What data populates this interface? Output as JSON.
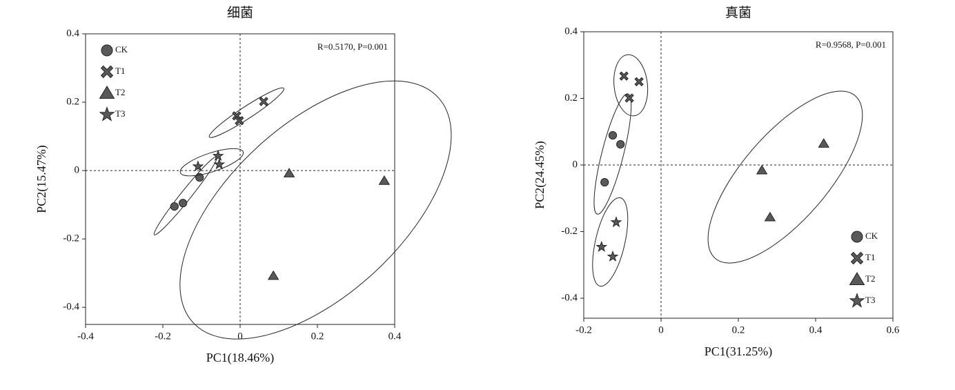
{
  "chart_data": [
    {
      "type": "scatter",
      "title": "细菌",
      "x_label": "PC1(18.46%)",
      "y_label": "PC2(15.47%)",
      "annotation": "R=0.5170, P=0.001",
      "legend": "upper left",
      "xlim": [
        -0.4,
        0.4
      ],
      "ylim": [
        -0.45,
        0.4
      ],
      "xticks": [
        -0.4,
        -0.2,
        0,
        0.2,
        0.4
      ],
      "yticks": [
        -0.4,
        -0.2,
        0,
        0.2,
        0.4
      ],
      "series": [
        {
          "name": "CK",
          "marker": "circle",
          "color": "#595959",
          "x": [
            -0.17,
            -0.148,
            -0.105
          ],
          "values": [
            -0.105,
            -0.095,
            -0.02
          ]
        },
        {
          "name": "T1",
          "marker": "x",
          "color": "#595959",
          "x": [
            -0.009,
            -0.002,
            0.061
          ],
          "values": [
            0.16,
            0.146,
            0.202
          ]
        },
        {
          "name": "T2",
          "marker": "triangle",
          "color": "#595959",
          "x": [
            0.127,
            0.373,
            0.086
          ],
          "values": [
            -0.008,
            -0.03,
            -0.308
          ]
        },
        {
          "name": "T3",
          "marker": "star",
          "color": "#595959",
          "x": [
            -0.109,
            -0.057,
            -0.054
          ],
          "values": [
            0.012,
            0.043,
            0.018
          ]
        }
      ]
    },
    {
      "type": "scatter",
      "title": "真菌",
      "x_label": "PC1(31.25%)",
      "y_label": "PC2(24.45%)",
      "annotation": "R=0.9568, P=0.001",
      "legend": "lower right",
      "xlim": [
        -0.2,
        0.6
      ],
      "ylim": [
        -0.46,
        0.4
      ],
      "xticks": [
        -0.2,
        0,
        0.2,
        0.4,
        0.6
      ],
      "yticks": [
        -0.4,
        -0.2,
        0,
        0.2,
        0.4
      ],
      "series": [
        {
          "name": "CK",
          "marker": "circle",
          "color": "#595959",
          "x": [
            -0.125,
            -0.105,
            -0.146
          ],
          "values": [
            0.089,
            0.062,
            -0.052
          ]
        },
        {
          "name": "T1",
          "marker": "x",
          "color": "#595959",
          "x": [
            -0.096,
            -0.057,
            -0.082
          ],
          "values": [
            0.267,
            0.25,
            0.201
          ]
        },
        {
          "name": "T2",
          "marker": "triangle",
          "color": "#595959",
          "x": [
            0.421,
            0.261,
            0.282
          ],
          "values": [
            0.064,
            -0.016,
            -0.157
          ]
        },
        {
          "name": "T3",
          "marker": "star",
          "color": "#595959",
          "x": [
            -0.116,
            -0.154,
            -0.125
          ],
          "values": [
            -0.172,
            -0.246,
            -0.275
          ]
        }
      ]
    }
  ]
}
